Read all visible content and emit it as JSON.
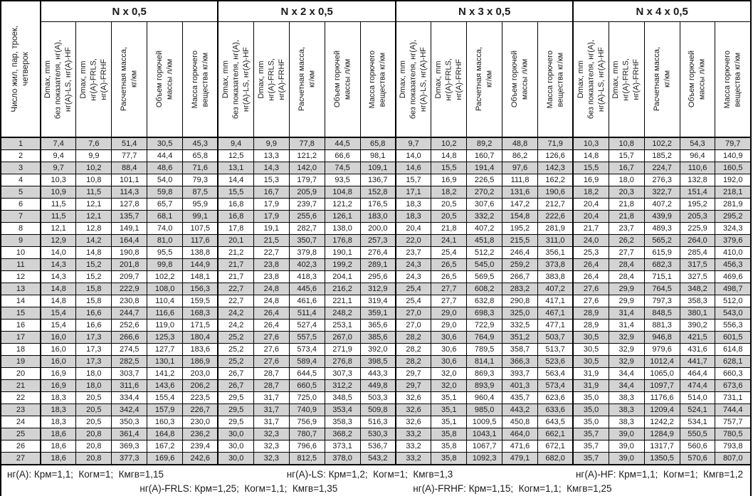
{
  "table": {
    "row_header": "Число жил, пар, троек,\nчетверок",
    "groups": [
      "N x 0,5",
      "N x 2 x 0,5",
      "N x 3 x 0,5",
      "N x 4 x 0,5"
    ],
    "subcolumns": [
      "Dmax, mm\nбез показателя, нг(A),\nнг(A)-LS, нг(A)-HF",
      "Dmax, mm\nнг(A)-FRLS,\nнг(A)-FRHF",
      "Расчетная масса,\nкг/км",
      "Объем горючей\nмассы л/км",
      "Масса горючего\nвещества кг/км"
    ],
    "rows": [
      [
        "1",
        "7,4",
        "7,6",
        "51,4",
        "30,5",
        "45,3",
        "9,4",
        "9,9",
        "77,8",
        "44,5",
        "65,8",
        "9,7",
        "10,2",
        "89,2",
        "48,8",
        "71,9",
        "10,3",
        "10,8",
        "102,2",
        "54,3",
        "79,7"
      ],
      [
        "2",
        "9,4",
        "9,9",
        "77,7",
        "44,4",
        "65,8",
        "12,5",
        "13,3",
        "121,2",
        "66,6",
        "98,1",
        "14,0",
        "14,8",
        "160,7",
        "86,2",
        "126,6",
        "14,8",
        "15,7",
        "185,2",
        "96,4",
        "140,9"
      ],
      [
        "3",
        "9,7",
        "10,2",
        "88,4",
        "48,6",
        "71,6",
        "13,1",
        "14,3",
        "142,0",
        "74,5",
        "109,1",
        "14,6",
        "15,5",
        "191,4",
        "97,6",
        "142,3",
        "15,5",
        "16,7",
        "224,7",
        "110,6",
        "160,5"
      ],
      [
        "4",
        "10,3",
        "10,8",
        "101,1",
        "54,0",
        "79,3",
        "14,4",
        "15,3",
        "179,7",
        "93,5",
        "136,7",
        "15,7",
        "16,9",
        "226,5",
        "111,8",
        "162,2",
        "16,9",
        "18,0",
        "276,3",
        "132,8",
        "192,0"
      ],
      [
        "5",
        "10,9",
        "11,5",
        "114,3",
        "59,8",
        "87,5",
        "15,5",
        "16,7",
        "205,9",
        "104,8",
        "152,8",
        "17,1",
        "18,2",
        "270,2",
        "131,6",
        "190,6",
        "18,2",
        "20,3",
        "322,7",
        "151,4",
        "218,1"
      ],
      [
        "6",
        "11,5",
        "12,1",
        "127,8",
        "65,7",
        "95,9",
        "16,8",
        "17,9",
        "239,7",
        "121,2",
        "176,5",
        "18,3",
        "20,5",
        "307,6",
        "147,2",
        "212,7",
        "20,4",
        "21,8",
        "407,2",
        "195,2",
        "281,9"
      ],
      [
        "7",
        "11,5",
        "12,1",
        "135,7",
        "68,1",
        "99,1",
        "16,8",
        "17,9",
        "255,6",
        "126,1",
        "183,0",
        "18,3",
        "20,5",
        "332,2",
        "154,8",
        "222,6",
        "20,4",
        "21,8",
        "439,9",
        "205,3",
        "295,2"
      ],
      [
        "8",
        "12,1",
        "12,8",
        "149,1",
        "74,0",
        "107,5",
        "17,8",
        "19,1",
        "282,7",
        "138,0",
        "200,0",
        "20,4",
        "21,8",
        "407,2",
        "195,2",
        "281,9",
        "21,7",
        "23,7",
        "489,3",
        "225,9",
        "324,3"
      ],
      [
        "9",
        "12,9",
        "14,2",
        "164,4",
        "81,0",
        "117,6",
        "20,1",
        "21,5",
        "350,7",
        "176,8",
        "257,3",
        "22,0",
        "24,1",
        "451,8",
        "215,5",
        "311,0",
        "24,0",
        "26,2",
        "565,2",
        "264,0",
        "379,6"
      ],
      [
        "10",
        "14,0",
        "14,8",
        "190,8",
        "95,5",
        "138,8",
        "21,2",
        "22,7",
        "379,8",
        "190,1",
        "276,4",
        "23,7",
        "25,4",
        "512,2",
        "246,4",
        "356,1",
        "25,3",
        "27,7",
        "615,9",
        "285,4",
        "410,0"
      ],
      [
        "11",
        "14,3",
        "15,2",
        "201,8",
        "99,8",
        "144,9",
        "21,7",
        "23,8",
        "402,3",
        "199,2",
        "289,1",
        "24,3",
        "26,5",
        "545,0",
        "259,2",
        "373,8",
        "26,4",
        "28,4",
        "682,3",
        "317,5",
        "456,3"
      ],
      [
        "12",
        "14,3",
        "15,2",
        "209,7",
        "102,2",
        "148,1",
        "21,7",
        "23,8",
        "418,3",
        "204,1",
        "295,6",
        "24,3",
        "26,5",
        "569,5",
        "266,7",
        "383,8",
        "26,4",
        "28,4",
        "715,1",
        "327,5",
        "469,6"
      ],
      [
        "13",
        "14,8",
        "15,8",
        "222,9",
        "108,0",
        "156,3",
        "22,7",
        "24,8",
        "445,6",
        "216,2",
        "312,9",
        "25,4",
        "27,7",
        "608,2",
        "283,2",
        "407,2",
        "27,6",
        "29,9",
        "764,5",
        "348,2",
        "498,7"
      ],
      [
        "14",
        "14,8",
        "15,8",
        "230,8",
        "110,4",
        "159,5",
        "22,7",
        "24,8",
        "461,6",
        "221,1",
        "319,4",
        "25,4",
        "27,7",
        "632,8",
        "290,8",
        "417,1",
        "27,6",
        "29,9",
        "797,3",
        "358,3",
        "512,0"
      ],
      [
        "15",
        "15,4",
        "16,6",
        "244,7",
        "116,6",
        "168,3",
        "24,2",
        "26,4",
        "511,4",
        "248,2",
        "359,1",
        "27,0",
        "29,0",
        "698,3",
        "325,0",
        "467,1",
        "28,9",
        "31,4",
        "848,5",
        "380,1",
        "543,0"
      ],
      [
        "16",
        "15,4",
        "16,6",
        "252,6",
        "119,0",
        "171,5",
        "24,2",
        "26,4",
        "527,4",
        "253,1",
        "365,6",
        "27,0",
        "29,0",
        "722,9",
        "332,5",
        "477,1",
        "28,9",
        "31,4",
        "881,3",
        "390,2",
        "556,3"
      ],
      [
        "17",
        "16,0",
        "17,3",
        "266,6",
        "125,3",
        "180,4",
        "25,2",
        "27,6",
        "557,5",
        "267,0",
        "385,6",
        "28,2",
        "30,6",
        "764,9",
        "351,2",
        "503,7",
        "30,5",
        "32,9",
        "946,8",
        "421,5",
        "601,5"
      ],
      [
        "18",
        "16,0",
        "17,3",
        "274,5",
        "127,7",
        "183,6",
        "25,2",
        "27,6",
        "573,4",
        "271,9",
        "392,0",
        "28,2",
        "30,6",
        "789,5",
        "358,7",
        "513,7",
        "30,5",
        "32,9",
        "979,6",
        "431,6",
        "614,8"
      ],
      [
        "19",
        "16,0",
        "17,3",
        "282,5",
        "130,1",
        "186,9",
        "25,2",
        "27,6",
        "589,4",
        "276,8",
        "398,5",
        "28,2",
        "30,6",
        "814,1",
        "366,3",
        "523,6",
        "30,5",
        "32,9",
        "1012,4",
        "441,7",
        "628,1"
      ],
      [
        "20",
        "16,9",
        "18,0",
        "303,7",
        "141,2",
        "203,0",
        "26,7",
        "28,7",
        "644,5",
        "307,3",
        "443,3",
        "29,7",
        "32,0",
        "869,3",
        "393,7",
        "563,4",
        "31,9",
        "34,4",
        "1065,0",
        "464,4",
        "660,3"
      ],
      [
        "21",
        "16,9",
        "18,0",
        "311,6",
        "143,6",
        "206,2",
        "26,7",
        "28,7",
        "660,5",
        "312,2",
        "449,8",
        "29,7",
        "32,0",
        "893,9",
        "401,3",
        "573,4",
        "31,9",
        "34,4",
        "1097,7",
        "474,4",
        "673,6"
      ],
      [
        "22",
        "18,3",
        "20,5",
        "334,4",
        "155,4",
        "223,5",
        "29,5",
        "31,7",
        "725,0",
        "348,5",
        "503,3",
        "32,6",
        "35,1",
        "960,4",
        "435,7",
        "623,6",
        "35,0",
        "38,3",
        "1176,6",
        "514,0",
        "731,1"
      ],
      [
        "23",
        "18,3",
        "20,5",
        "342,4",
        "157,9",
        "226,7",
        "29,5",
        "31,7",
        "740,9",
        "353,4",
        "509,8",
        "32,6",
        "35,1",
        "985,0",
        "443,2",
        "633,6",
        "35,0",
        "38,3",
        "1209,4",
        "524,1",
        "744,4"
      ],
      [
        "24",
        "18,3",
        "20,5",
        "350,3",
        "160,3",
        "230,0",
        "29,5",
        "31,7",
        "756,9",
        "358,3",
        "516,3",
        "32,6",
        "35,1",
        "1009,5",
        "450,8",
        "643,5",
        "35,0",
        "38,3",
        "1242,2",
        "534,1",
        "757,7"
      ],
      [
        "25",
        "18,6",
        "20,8",
        "361,4",
        "164,8",
        "236,2",
        "30,0",
        "32,3",
        "780,7",
        "368,2",
        "530,3",
        "33,2",
        "35,8",
        "1043,1",
        "464,0",
        "662,1",
        "35,7",
        "39,0",
        "1284,9",
        "550,5",
        "780,5"
      ],
      [
        "26",
        "18,6",
        "20,8",
        "369,3",
        "167,2",
        "239,4",
        "30,0",
        "32,3",
        "796,6",
        "373,1",
        "536,7",
        "33,2",
        "35,8",
        "1067,7",
        "471,6",
        "672,1",
        "35,7",
        "39,0",
        "1317,7",
        "560,6",
        "793,8"
      ],
      [
        "27",
        "18,6",
        "20,8",
        "377,3",
        "169,6",
        "242,6",
        "30,0",
        "32,3",
        "812,5",
        "378,0",
        "543,2",
        "33,2",
        "35,8",
        "1092,3",
        "479,1",
        "682,0",
        "35,7",
        "39,0",
        "1350,5",
        "570,6",
        "807,0"
      ]
    ]
  },
  "footer": {
    "line1": [
      "нг(A): Крм=1,1;  Когм=1;  Кмгв=1,15",
      "нг(A)-LS: Крм=1,2;  Когм=1;  Кмгв=1,3",
      "нг(A)-HF: Крм=1,1;  Когм=1;  Кмгв=1,2"
    ],
    "line2": [
      "нг(A)-FRLS: Крм=1,25;  Когм=1,1;  Кмгв=1,35",
      "нг(A)-FRHF: Крм=1,15;  Когм=1,1;  Кмгв=1,25"
    ]
  },
  "colors": {
    "stripe": "#d3d3d3",
    "border": "#000000",
    "background": "#ffffff"
  }
}
